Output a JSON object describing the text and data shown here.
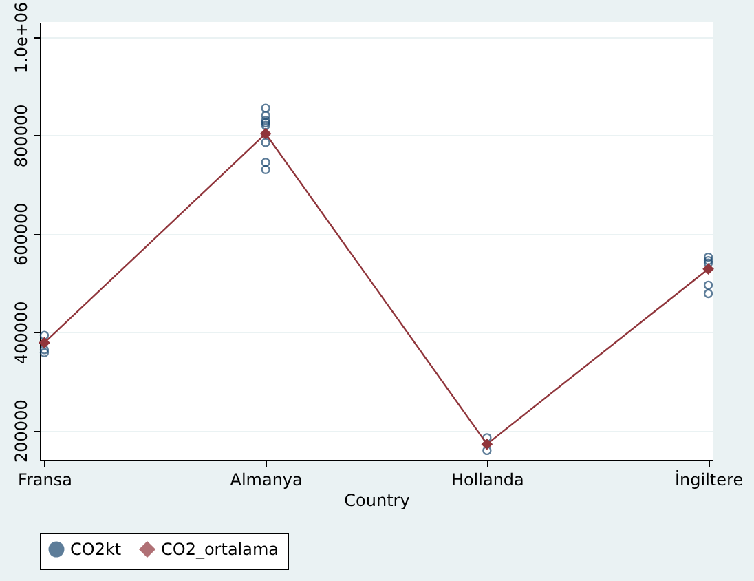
{
  "chart_data": {
    "type": "line",
    "xlabel": "Country",
    "categories": [
      "Fransa",
      "Almanya",
      "Hollanda",
      "İngiltere"
    ],
    "series": [
      {
        "name": "CO2kt",
        "type": "scatter",
        "color": "#1a476f",
        "marker": "circle",
        "x": [
          "Fransa",
          "Fransa",
          "Fransa",
          "Almanya",
          "Almanya",
          "Almanya",
          "Almanya",
          "Almanya",
          "Almanya",
          "Almanya",
          "Almanya",
          "Hollanda",
          "Hollanda",
          "İngiltere",
          "İngiltere",
          "İngiltere",
          "İngiltere",
          "İngiltere"
        ],
        "values": [
          393000,
          364000,
          358000,
          855000,
          840000,
          830000,
          825000,
          820000,
          785000,
          745000,
          730000,
          185000,
          159000,
          552000,
          545000,
          540000,
          495000,
          478000
        ]
      },
      {
        "name": "CO2_ortalama",
        "color": "#90353b",
        "marker": "diamond",
        "values": [
          378000,
          803000,
          172000,
          528000
        ]
      }
    ],
    "ylim": [
      140000,
      1030000
    ],
    "yticks": [
      200000,
      400000,
      600000,
      800000,
      {
        "value": 1000000,
        "label": "1.0e+06"
      }
    ],
    "grid": "y",
    "legend": "bottom"
  }
}
